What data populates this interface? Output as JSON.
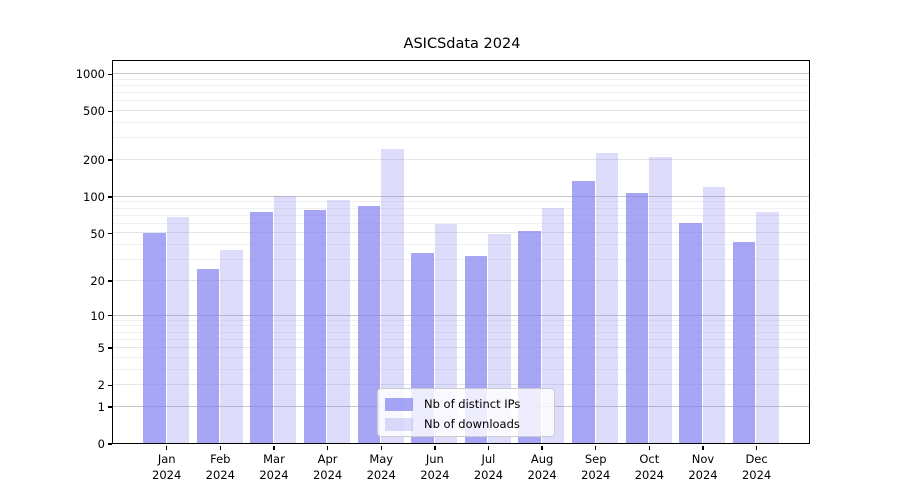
{
  "chart_data": {
    "type": "bar",
    "title": "ASICSdata 2024",
    "categories": [
      "Jan 2024",
      "Feb 2024",
      "Mar 2024",
      "Apr 2024",
      "May 2024",
      "Jun 2024",
      "Jul 2024",
      "Aug 2024",
      "Sep 2024",
      "Oct 2024",
      "Nov 2024",
      "Dec 2024"
    ],
    "series": [
      {
        "name": "Nb of distinct IPs",
        "values": [
          50,
          25,
          74,
          78,
          84,
          34,
          32,
          52,
          133,
          106,
          60,
          42
        ],
        "color": "rgba(128,128,240,0.7)"
      },
      {
        "name": "Nb of downloads",
        "values": [
          68,
          36,
          100,
          94,
          245,
          59,
          49,
          80,
          225,
          210,
          119,
          75
        ],
        "color": "rgba(128,128,240,0.27)"
      }
    ],
    "yscale": "log10(v+1)",
    "yticks": [
      0,
      1,
      2,
      5,
      10,
      20,
      50,
      100,
      200,
      500,
      1000
    ],
    "ylim": [
      0,
      1258
    ],
    "grid": true,
    "legend_position": "lower center",
    "colors": {
      "grid_major": "#c6c6c6",
      "grid_mid": "#e4e4e8",
      "grid_minor": "#f0f0f3",
      "spine": "#000000"
    }
  }
}
